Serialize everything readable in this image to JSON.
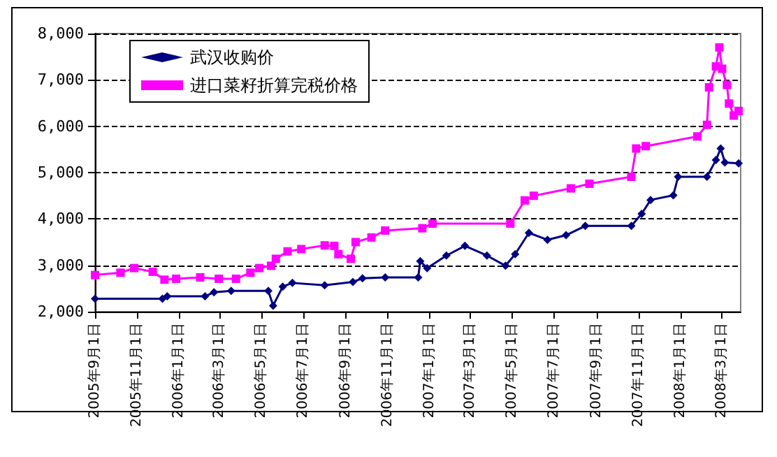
{
  "chart_data": {
    "type": "line",
    "legend": "top left",
    "grid": "y",
    "line_style": "solid",
    "xlim": [
      "2005-09-01",
      "2008-03-28"
    ],
    "xticks": [
      {
        "value": "2005-09-01",
        "label": "2005年9月1日"
      },
      {
        "value": "2005-11-01",
        "label": "2005年11月1日"
      },
      {
        "value": "2006-01-01",
        "label": "2006年1月1日"
      },
      {
        "value": "2006-03-01",
        "label": "2006年3月1日"
      },
      {
        "value": "2006-05-01",
        "label": "2006年5月1日"
      },
      {
        "value": "2006-07-01",
        "label": "2006年7月1日"
      },
      {
        "value": "2006-09-01",
        "label": "2006年9月1日"
      },
      {
        "value": "2006-11-01",
        "label": "2006年11月1日"
      },
      {
        "value": "2007-01-01",
        "label": "2007年1月1日"
      },
      {
        "value": "2007-03-01",
        "label": "2007年3月1日"
      },
      {
        "value": "2007-05-01",
        "label": "2007年5月1日"
      },
      {
        "value": "2007-07-01",
        "label": "2007年7月1日"
      },
      {
        "value": "2007-09-01",
        "label": "2007年9月1日"
      },
      {
        "value": "2007-11-01",
        "label": "2007年11月1日"
      },
      {
        "value": "2008-01-01",
        "label": "2008年1月1日"
      },
      {
        "value": "2008-03-01",
        "label": "2008年3月1日"
      }
    ],
    "ylim": [
      2000,
      8000
    ],
    "yticks": [
      {
        "value": 2000,
        "label": "2,000"
      },
      {
        "value": 3000,
        "label": "3,000"
      },
      {
        "value": 4000,
        "label": "4,000"
      },
      {
        "value": 5000,
        "label": "5,000"
      },
      {
        "value": 6000,
        "label": "6,000"
      },
      {
        "value": 7000,
        "label": "7,000"
      },
      {
        "value": 8000,
        "label": "8,000"
      }
    ],
    "series": [
      {
        "name": "武汉收购价",
        "color": "#000080",
        "marker": "diamond",
        "x": [
          "2005-09-01",
          "2005-12-08",
          "2005-12-15",
          "2006-02-08",
          "2006-02-21",
          "2006-03-18",
          "2006-05-11",
          "2006-05-18",
          "2006-06-01",
          "2006-06-15",
          "2006-08-01",
          "2006-09-11",
          "2006-09-25",
          "2006-10-28",
          "2006-12-15",
          "2006-12-18",
          "2006-12-28",
          "2007-01-25",
          "2007-02-21",
          "2007-03-25",
          "2007-04-21",
          "2007-05-05",
          "2007-05-25",
          "2007-06-21",
          "2007-07-18",
          "2007-08-15",
          "2007-10-21",
          "2007-11-05",
          "2007-11-18",
          "2007-12-21",
          "2007-12-28",
          "2008-02-08",
          "2008-02-21",
          "2008-02-28",
          "2008-03-05",
          "2008-03-25"
        ],
        "values": [
          2280,
          2280,
          2330,
          2330,
          2420,
          2450,
          2450,
          2130,
          2540,
          2620,
          2570,
          2640,
          2720,
          2740,
          2740,
          3090,
          2940,
          3210,
          3420,
          3210,
          2990,
          3240,
          3700,
          3550,
          3650,
          3850,
          3850,
          4110,
          4410,
          4510,
          4910,
          4910,
          5270,
          5520,
          5220,
          5200
        ]
      },
      {
        "name": "进口菜籽折算完税价格",
        "color": "#ff00ff",
        "marker": "square",
        "x": [
          "2005-09-01",
          "2005-10-08",
          "2005-10-28",
          "2005-11-24",
          "2005-12-11",
          "2005-12-28",
          "2006-02-01",
          "2006-02-28",
          "2006-03-25",
          "2006-04-15",
          "2006-04-28",
          "2006-05-15",
          "2006-05-22",
          "2006-06-08",
          "2006-06-28",
          "2006-08-01",
          "2006-08-15",
          "2006-08-21",
          "2006-09-08",
          "2006-09-15",
          "2006-10-08",
          "2006-10-28",
          "2006-12-21",
          "2007-01-05",
          "2007-04-28",
          "2007-05-19",
          "2007-06-01",
          "2007-07-25",
          "2007-08-21",
          "2007-10-21",
          "2007-10-28",
          "2007-11-11",
          "2008-01-25",
          "2008-02-08",
          "2008-02-11",
          "2008-02-21",
          "2008-02-26",
          "2008-03-01",
          "2008-03-08",
          "2008-03-11",
          "2008-03-18",
          "2008-03-25"
        ],
        "values": [
          2790,
          2840,
          2940,
          2860,
          2690,
          2710,
          2740,
          2710,
          2710,
          2840,
          2940,
          2990,
          3140,
          3300,
          3350,
          3430,
          3420,
          3240,
          3140,
          3500,
          3600,
          3750,
          3800,
          3900,
          3900,
          4400,
          4500,
          4660,
          4760,
          4910,
          5520,
          5570,
          5780,
          6030,
          6840,
          7290,
          7700,
          7240,
          6890,
          6490,
          6230,
          6330
        ]
      }
    ]
  }
}
